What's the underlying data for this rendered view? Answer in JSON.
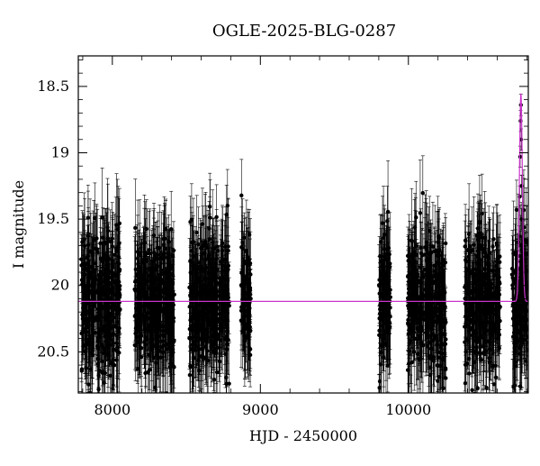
{
  "chart_data": {
    "type": "scatter",
    "title": "OGLE-2025-BLG-0287",
    "xlabel": "HJD - 2450000",
    "ylabel": "I magnitude",
    "xlim": [
      7770,
      10810
    ],
    "ylim": [
      20.81,
      18.27
    ],
    "y_inverted": true,
    "xticks": [
      8000,
      9000,
      10000
    ],
    "xtick_labels": [
      "8000",
      "9000",
      "10000"
    ],
    "yticks": [
      18.5,
      19,
      19.5,
      20,
      20.5
    ],
    "ytick_labels": [
      "18.5",
      "19",
      "19.5",
      "20",
      "20.5"
    ],
    "grid": false,
    "colors": {
      "points": "#000000",
      "model": "#cc33cc"
    },
    "observing_seasons": [
      {
        "start": 7790,
        "end": 8055,
        "mean_mag": 20.12,
        "scatter": 0.26
      },
      {
        "start": 8150,
        "end": 8420,
        "mean_mag": 20.12,
        "scatter": 0.26
      },
      {
        "start": 8520,
        "end": 8790,
        "mean_mag": 20.12,
        "scatter": 0.26
      },
      {
        "start": 8870,
        "end": 8935,
        "mean_mag": 20.12,
        "scatter": 0.24
      },
      {
        "start": 9800,
        "end": 9880,
        "mean_mag": 20.12,
        "scatter": 0.26
      },
      {
        "start": 9995,
        "end": 10255,
        "mean_mag": 20.12,
        "scatter": 0.26
      },
      {
        "start": 10380,
        "end": 10620,
        "mean_mag": 20.12,
        "scatter": 0.26
      },
      {
        "start": 10700,
        "end": 10810,
        "mean_mag": 20.12,
        "scatter": 0.26
      }
    ],
    "event_points": [
      {
        "x": 10760,
        "y": 18.64
      },
      {
        "x": 10758,
        "y": 18.76
      },
      {
        "x": 10762,
        "y": 18.9
      },
      {
        "x": 10755,
        "y": 19.03
      },
      {
        "x": 10764,
        "y": 19.25
      },
      {
        "x": 10752,
        "y": 19.33
      },
      {
        "x": 10767,
        "y": 19.5
      },
      {
        "x": 10749,
        "y": 19.63
      },
      {
        "x": 10771,
        "y": 19.72
      }
    ],
    "model_curve": {
      "name": "model",
      "baseline_mag": 20.12,
      "peak_time": 10760,
      "peak_mag": 18.55,
      "timescale": 14
    }
  }
}
